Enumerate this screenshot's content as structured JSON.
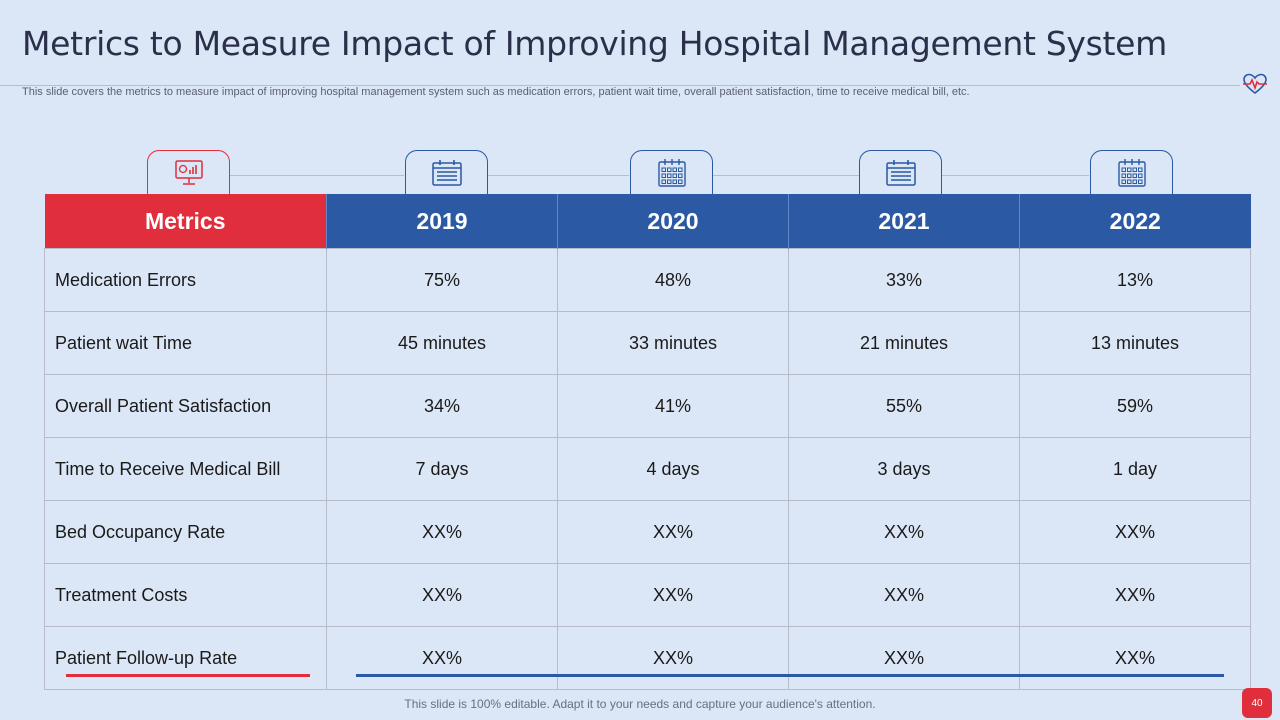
{
  "slide": {
    "title": "Metrics to Measure Impact of Improving Hospital Management System",
    "subtitle": "This slide covers the metrics to measure impact of improving hospital management system such as medication errors, patient wait time, overall patient satisfaction, time to receive medical bill, etc.",
    "footer": "This slide is 100% editable. Adapt it to your needs and capture your audience's attention.",
    "page_number": "40"
  },
  "icons": {
    "header": "heartbeat-icon",
    "metrics": "dashboard-monitor-icon",
    "years": [
      "calendar-icon",
      "calendar-grid-icon",
      "calendar-icon",
      "calendar-grid-icon"
    ]
  },
  "colors": {
    "accent_red": "#e02e3c",
    "accent_blue": "#2b59a3",
    "background": "#dbe6f6"
  },
  "table": {
    "headers": [
      "Metrics",
      "2019",
      "2020",
      "2021",
      "2022"
    ],
    "rows": [
      [
        "Medication Errors",
        "75%",
        "48%",
        "33%",
        "13%"
      ],
      [
        "Patient wait Time",
        "45 minutes",
        "33 minutes",
        "21 minutes",
        "13 minutes"
      ],
      [
        "Overall Patient Satisfaction",
        "34%",
        "41%",
        "55%",
        "59%"
      ],
      [
        "Time to Receive Medical Bill",
        "7 days",
        "4 days",
        "3 days",
        "1 day"
      ],
      [
        "Bed Occupancy Rate",
        "XX%",
        "XX%",
        "XX%",
        "XX%"
      ],
      [
        "Treatment Costs",
        "XX%",
        "XX%",
        "XX%",
        "XX%"
      ],
      [
        "Patient Follow-up Rate",
        "XX%",
        "XX%",
        "XX%",
        "XX%"
      ]
    ]
  }
}
